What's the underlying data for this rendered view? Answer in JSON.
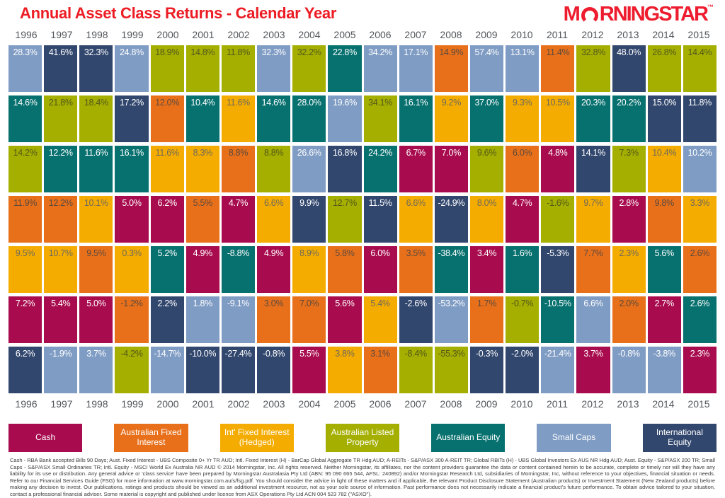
{
  "title": "Annual Asset Class Returns - Calendar Year",
  "logo": {
    "part1": "M",
    "part2": "RNINGSTAR",
    "tm": "™"
  },
  "theme": {
    "brand_red": "#ed1c24",
    "year_label_color": "#53565a",
    "background": "#ffffff"
  },
  "years": [
    "1996",
    "1997",
    "1998",
    "1999",
    "2000",
    "2001",
    "2002",
    "2003",
    "2004",
    "2005",
    "2006",
    "2007",
    "2008",
    "2009",
    "2010",
    "2011",
    "2012",
    "2013",
    "2014",
    "2015"
  ],
  "chart_data": {
    "type": "heatmap",
    "title": "Annual Asset Class Returns - Calendar Year",
    "description": "Periodic table of annual returns; each column is a calendar year with asset classes ranked best (top) to worst (bottom). Cell color encodes asset class.",
    "values_unit": "%",
    "legend_position": "bottom",
    "legend": [
      {
        "id": "cash",
        "label": "Cash",
        "color": "#a80c4e",
        "value_text_color": "#ffffff"
      },
      {
        "id": "aus_fixed_interest",
        "label": "Australian Fixed Interest",
        "color": "#e8701b",
        "value_text_color": "#5c4a3c"
      },
      {
        "id": "intl_fixed_interest_hedged",
        "label": "Int' Fixed Interest (Hedged)",
        "color": "#f5ac00",
        "value_text_color": "#6e6a5a"
      },
      {
        "id": "aus_listed_property",
        "label": "Australian Listed Property",
        "color": "#a4af00",
        "value_text_color": "#55591a"
      },
      {
        "id": "aus_equity",
        "label": "Australian Equity",
        "color": "#07716f",
        "value_text_color": "#ffffff"
      },
      {
        "id": "small_caps",
        "label": "Small Caps",
        "color": "#7f9cc4",
        "value_text_color": "#ffffff"
      },
      {
        "id": "intl_equity",
        "label": "International Equity",
        "color": "#32476e",
        "value_text_color": "#ffffff"
      }
    ],
    "columns": [
      {
        "year": "1996",
        "cells": [
          {
            "value": "28.3%",
            "asset_class": "small_caps"
          },
          {
            "value": "14.6%",
            "asset_class": "aus_equity"
          },
          {
            "value": "14.2%",
            "asset_class": "aus_listed_property"
          },
          {
            "value": "11.9%",
            "asset_class": "aus_fixed_interest"
          },
          {
            "value": "9.5%",
            "asset_class": "intl_fixed_interest_hedged"
          },
          {
            "value": "7.2%",
            "asset_class": "cash"
          },
          {
            "value": "6.2%",
            "asset_class": "intl_equity"
          }
        ]
      },
      {
        "year": "1997",
        "cells": [
          {
            "value": "41.6%",
            "asset_class": "intl_equity"
          },
          {
            "value": "21.8%",
            "asset_class": "aus_listed_property"
          },
          {
            "value": "12.2%",
            "asset_class": "aus_equity"
          },
          {
            "value": "12.2%",
            "asset_class": "aus_fixed_interest"
          },
          {
            "value": "10.7%",
            "asset_class": "intl_fixed_interest_hedged"
          },
          {
            "value": "5.4%",
            "asset_class": "cash"
          },
          {
            "value": "-1.9%",
            "asset_class": "small_caps"
          }
        ]
      },
      {
        "year": "1998",
        "cells": [
          {
            "value": "32.3%",
            "asset_class": "intl_equity"
          },
          {
            "value": "18.4%",
            "asset_class": "aus_listed_property"
          },
          {
            "value": "11.6%",
            "asset_class": "aus_equity"
          },
          {
            "value": "10.1%",
            "asset_class": "intl_fixed_interest_hedged"
          },
          {
            "value": "9.5%",
            "asset_class": "aus_fixed_interest"
          },
          {
            "value": "5.0%",
            "asset_class": "cash"
          },
          {
            "value": "3.7%",
            "asset_class": "small_caps"
          }
        ]
      },
      {
        "year": "1999",
        "cells": [
          {
            "value": "24.8%",
            "asset_class": "small_caps"
          },
          {
            "value": "17.2%",
            "asset_class": "intl_equity"
          },
          {
            "value": "16.1%",
            "asset_class": "aus_equity"
          },
          {
            "value": "5.0%",
            "asset_class": "cash"
          },
          {
            "value": "0.3%",
            "asset_class": "intl_fixed_interest_hedged"
          },
          {
            "value": "-1.2%",
            "asset_class": "aus_fixed_interest"
          },
          {
            "value": "-4.2%",
            "asset_class": "aus_listed_property"
          }
        ]
      },
      {
        "year": "2000",
        "cells": [
          {
            "value": "18.9%",
            "asset_class": "aus_listed_property"
          },
          {
            "value": "12.0%",
            "asset_class": "aus_fixed_interest"
          },
          {
            "value": "11.6%",
            "asset_class": "intl_fixed_interest_hedged"
          },
          {
            "value": "6.2%",
            "asset_class": "cash"
          },
          {
            "value": "5.2%",
            "asset_class": "aus_equity"
          },
          {
            "value": "2.2%",
            "asset_class": "intl_equity"
          },
          {
            "value": "-14.7%",
            "asset_class": "small_caps"
          }
        ]
      },
      {
        "year": "2001",
        "cells": [
          {
            "value": "14.8%",
            "asset_class": "aus_listed_property"
          },
          {
            "value": "10.4%",
            "asset_class": "aus_equity"
          },
          {
            "value": "8.3%",
            "asset_class": "intl_fixed_interest_hedged"
          },
          {
            "value": "5.5%",
            "asset_class": "aus_fixed_interest"
          },
          {
            "value": "4.9%",
            "asset_class": "cash"
          },
          {
            "value": "1.8%",
            "asset_class": "small_caps"
          },
          {
            "value": "-10.0%",
            "asset_class": "intl_equity"
          }
        ]
      },
      {
        "year": "2002",
        "cells": [
          {
            "value": "11.8%",
            "asset_class": "aus_listed_property"
          },
          {
            "value": "11.6%",
            "asset_class": "intl_fixed_interest_hedged"
          },
          {
            "value": "8.8%",
            "asset_class": "aus_fixed_interest"
          },
          {
            "value": "4.7%",
            "asset_class": "cash"
          },
          {
            "value": "-8.8%",
            "asset_class": "aus_equity"
          },
          {
            "value": "-9.1%",
            "asset_class": "small_caps"
          },
          {
            "value": "-27.4%",
            "asset_class": "intl_equity"
          }
        ]
      },
      {
        "year": "2003",
        "cells": [
          {
            "value": "32.3%",
            "asset_class": "small_caps"
          },
          {
            "value": "14.6%",
            "asset_class": "aus_equity"
          },
          {
            "value": "8.8%",
            "asset_class": "aus_listed_property"
          },
          {
            "value": "6.6%",
            "asset_class": "intl_fixed_interest_hedged"
          },
          {
            "value": "4.9%",
            "asset_class": "cash"
          },
          {
            "value": "3.0%",
            "asset_class": "aus_fixed_interest"
          },
          {
            "value": "-0.8%",
            "asset_class": "intl_equity"
          }
        ]
      },
      {
        "year": "2004",
        "cells": [
          {
            "value": "32.2%",
            "asset_class": "aus_listed_property"
          },
          {
            "value": "28.0%",
            "asset_class": "aus_equity"
          },
          {
            "value": "26.6%",
            "asset_class": "small_caps"
          },
          {
            "value": "9.9%",
            "asset_class": "intl_equity"
          },
          {
            "value": "8.9%",
            "asset_class": "intl_fixed_interest_hedged"
          },
          {
            "value": "7.0%",
            "asset_class": "aus_fixed_interest"
          },
          {
            "value": "5.5%",
            "asset_class": "cash"
          }
        ]
      },
      {
        "year": "2005",
        "cells": [
          {
            "value": "22.8%",
            "asset_class": "aus_equity"
          },
          {
            "value": "19.6%",
            "asset_class": "small_caps"
          },
          {
            "value": "16.8%",
            "asset_class": "intl_equity"
          },
          {
            "value": "12.7%",
            "asset_class": "aus_listed_property"
          },
          {
            "value": "5.8%",
            "asset_class": "aus_fixed_interest"
          },
          {
            "value": "5.6%",
            "asset_class": "cash"
          },
          {
            "value": "3.8%",
            "asset_class": "intl_fixed_interest_hedged"
          }
        ]
      },
      {
        "year": "2006",
        "cells": [
          {
            "value": "34.2%",
            "asset_class": "small_caps"
          },
          {
            "value": "34.1%",
            "asset_class": "aus_listed_property"
          },
          {
            "value": "24.2%",
            "asset_class": "aus_equity"
          },
          {
            "value": "11.5%",
            "asset_class": "intl_equity"
          },
          {
            "value": "6.0%",
            "asset_class": "cash"
          },
          {
            "value": "5.4%",
            "asset_class": "intl_fixed_interest_hedged"
          },
          {
            "value": "3.1%",
            "asset_class": "aus_fixed_interest"
          }
        ]
      },
      {
        "year": "2007",
        "cells": [
          {
            "value": "17.1%",
            "asset_class": "small_caps"
          },
          {
            "value": "16.1%",
            "asset_class": "aus_equity"
          },
          {
            "value": "6.7%",
            "asset_class": "cash"
          },
          {
            "value": "6.6%",
            "asset_class": "intl_fixed_interest_hedged"
          },
          {
            "value": "3.5%",
            "asset_class": "aus_fixed_interest"
          },
          {
            "value": "-2.6%",
            "asset_class": "intl_equity"
          },
          {
            "value": "-8.4%",
            "asset_class": "aus_listed_property"
          }
        ]
      },
      {
        "year": "2008",
        "cells": [
          {
            "value": "14.9%",
            "asset_class": "aus_fixed_interest"
          },
          {
            "value": "9.2%",
            "asset_class": "intl_fixed_interest_hedged"
          },
          {
            "value": "7.0%",
            "asset_class": "cash"
          },
          {
            "value": "-24.9%",
            "asset_class": "intl_equity"
          },
          {
            "value": "-38.4%",
            "asset_class": "aus_equity"
          },
          {
            "value": "-53.2%",
            "asset_class": "small_caps"
          },
          {
            "value": "-55.3%",
            "asset_class": "aus_listed_property"
          }
        ]
      },
      {
        "year": "2009",
        "cells": [
          {
            "value": "57.4%",
            "asset_class": "small_caps"
          },
          {
            "value": "37.0%",
            "asset_class": "aus_equity"
          },
          {
            "value": "9.6%",
            "asset_class": "aus_listed_property"
          },
          {
            "value": "8.0%",
            "asset_class": "intl_fixed_interest_hedged"
          },
          {
            "value": "3.4%",
            "asset_class": "cash"
          },
          {
            "value": "1.7%",
            "asset_class": "aus_fixed_interest"
          },
          {
            "value": "-0.3%",
            "asset_class": "intl_equity"
          }
        ]
      },
      {
        "year": "2010",
        "cells": [
          {
            "value": "13.1%",
            "asset_class": "small_caps"
          },
          {
            "value": "9.3%",
            "asset_class": "intl_fixed_interest_hedged"
          },
          {
            "value": "6.0%",
            "asset_class": "aus_fixed_interest"
          },
          {
            "value": "4.7%",
            "asset_class": "cash"
          },
          {
            "value": "1.6%",
            "asset_class": "aus_equity"
          },
          {
            "value": "-0.7%",
            "asset_class": "aus_listed_property"
          },
          {
            "value": "-2.0%",
            "asset_class": "intl_equity"
          }
        ]
      },
      {
        "year": "2011",
        "cells": [
          {
            "value": "11.4%",
            "asset_class": "aus_fixed_interest"
          },
          {
            "value": "10.5%",
            "asset_class": "intl_fixed_interest_hedged"
          },
          {
            "value": "4.8%",
            "asset_class": "cash"
          },
          {
            "value": "-1.6%",
            "asset_class": "aus_listed_property"
          },
          {
            "value": "-5.3%",
            "asset_class": "intl_equity"
          },
          {
            "value": "-10.5%",
            "asset_class": "aus_equity"
          },
          {
            "value": "-21.4%",
            "asset_class": "small_caps"
          }
        ]
      },
      {
        "year": "2012",
        "cells": [
          {
            "value": "32.8%",
            "asset_class": "aus_listed_property"
          },
          {
            "value": "20.3%",
            "asset_class": "aus_equity"
          },
          {
            "value": "14.1%",
            "asset_class": "intl_equity"
          },
          {
            "value": "9.7%",
            "asset_class": "intl_fixed_interest_hedged"
          },
          {
            "value": "7.7%",
            "asset_class": "aus_fixed_interest"
          },
          {
            "value": "6.6%",
            "asset_class": "small_caps"
          },
          {
            "value": "3.7%",
            "asset_class": "cash"
          }
        ]
      },
      {
        "year": "2013",
        "cells": [
          {
            "value": "48.0%",
            "asset_class": "intl_equity"
          },
          {
            "value": "20.2%",
            "asset_class": "aus_equity"
          },
          {
            "value": "7.3%",
            "asset_class": "aus_listed_property"
          },
          {
            "value": "2.8%",
            "asset_class": "cash"
          },
          {
            "value": "2.3%",
            "asset_class": "intl_fixed_interest_hedged"
          },
          {
            "value": "2.0%",
            "asset_class": "aus_fixed_interest"
          },
          {
            "value": "-0.8%",
            "asset_class": "small_caps"
          }
        ]
      },
      {
        "year": "2014",
        "cells": [
          {
            "value": "26.8%",
            "asset_class": "aus_listed_property"
          },
          {
            "value": "15.0%",
            "asset_class": "intl_equity"
          },
          {
            "value": "10.4%",
            "asset_class": "intl_fixed_interest_hedged"
          },
          {
            "value": "9.8%",
            "asset_class": "aus_fixed_interest"
          },
          {
            "value": "5.6%",
            "asset_class": "aus_equity"
          },
          {
            "value": "2.7%",
            "asset_class": "cash"
          },
          {
            "value": "-3.8%",
            "asset_class": "small_caps"
          }
        ]
      },
      {
        "year": "2015",
        "cells": [
          {
            "value": "14.4%",
            "asset_class": "aus_listed_property"
          },
          {
            "value": "11.8%",
            "asset_class": "intl_equity"
          },
          {
            "value": "10.2%",
            "asset_class": "small_caps"
          },
          {
            "value": "3.3%",
            "asset_class": "intl_fixed_interest_hedged"
          },
          {
            "value": "2.6%",
            "asset_class": "aus_fixed_interest"
          },
          {
            "value": "2.6%",
            "asset_class": "aus_equity"
          },
          {
            "value": "2.3%",
            "asset_class": "cash"
          }
        ]
      }
    ]
  },
  "footnote": "Cash - RBA Bank accepted Bills 90 Days; Aust. Fixed Interest - UBS Composite 0+ Yr TR AUD; Intl. Fixed Interest (H) - BarCap Global Aggregate TR Hdg AUD; A-REITs - S&P/ASX 300 A-REIT TR; Global RBITs (H) - UBS Global Investors Ex AUS NR Hdg AUD; Aust. Equity - S&P/ASX 200 TR; Small Caps - S&P/ASX Small Ordinaries TR; Intl. Equity - MSCI World Ex Australia NR AUD © 2014 Morningstar, Inc. All rights reserved. Neither Morningstar, its affiliates, nor the content providers guarantee the data or content contained herein to be accurate, complete or timely nor will they have any liability for its use or distribution. Any general advice or 'class service' have been prepared by Morningstar Australasia Pty Ltd (ABN: 95 090 665 544, AFSL: 240892) and/or Morningstar Research Ltd, subsidiaries of Morningstar, Inc, without reference to your objectives, financial situation or needs. Refer to our Financial Services Guide (FSG) for more information at www.morningstar.com.au/s/fsg.pdf. You should consider the advice in light of these matters and if applicable, the relevant Product Disclosure Statement (Australian products) or Investment Statement (New Zealand products) before making any decision to invest. Our publications, ratings and products should be viewed as an additional investment resource, not as your sole source of information. Past performance does not necessarily indicate a financial product's future performance. To obtain advice tailored to your situation, contact a professional financial adviser. Some material is copyright and published under licence from ASX Operations Pty Ltd ACN 004 523 782 (\"ASXO\")."
}
